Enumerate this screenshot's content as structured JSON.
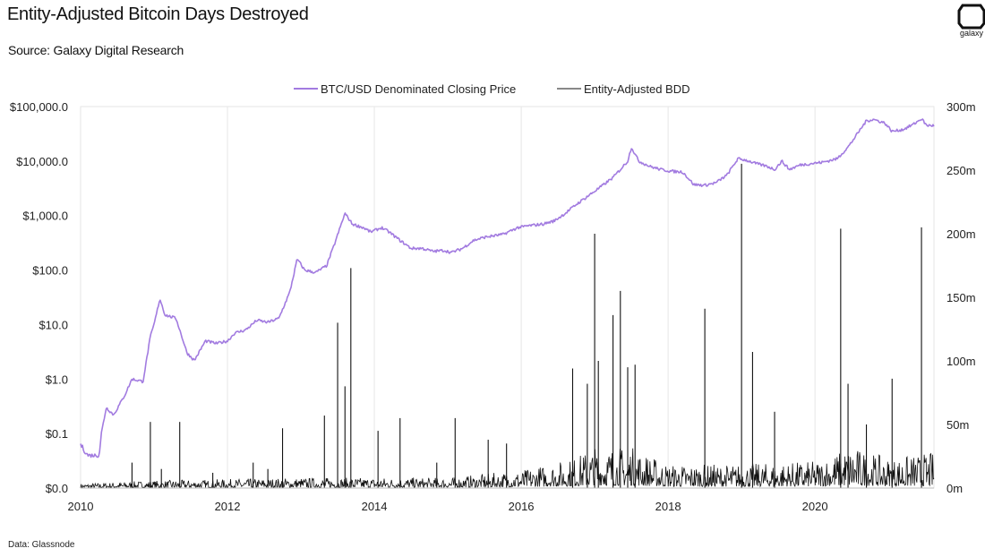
{
  "header": {
    "title": "Entity-Adjusted Bitcoin Days Destroyed",
    "subtitle": "Source: Galaxy Digital Research"
  },
  "logo": {
    "word": "galaxy"
  },
  "footer": {
    "note": "Data: Glassnode"
  },
  "colors": {
    "price": "#a27be0",
    "bdd": "#111111",
    "grid": "#e6e6e6"
  },
  "chart_data": {
    "type": "line",
    "x_range": [
      2010,
      2021.62
    ],
    "x_ticks": [
      2010,
      2012,
      2014,
      2016,
      2018,
      2020
    ],
    "x_tick_labels": [
      "2010",
      "2012",
      "2014",
      "2016",
      "2018",
      "2020"
    ],
    "left_axis": {
      "scale": "log-like",
      "ticks": [
        0,
        0.1,
        1,
        10,
        100,
        1000,
        10000,
        100000
      ],
      "tick_labels": [
        "$0.0",
        "$0.1",
        "$1.0",
        "$10.0",
        "$100.0",
        "$1,000.0",
        "$10,000.0",
        "$100,000.0"
      ]
    },
    "right_axis": {
      "scale": "linear",
      "range": [
        0,
        300000000
      ],
      "ticks": [
        0,
        50000000,
        100000000,
        150000000,
        200000000,
        250000000,
        300000000
      ],
      "tick_labels": [
        "0m",
        "50m",
        "100m",
        "150m",
        "200m",
        "250m",
        "300m"
      ]
    },
    "legend": {
      "placement": "top-center"
    },
    "series": [
      {
        "name": "BTC/USD Denominated Closing Price",
        "axis": "left",
        "points": [
          [
            2010.0,
            0.08
          ],
          [
            2010.1,
            0.06
          ],
          [
            2010.25,
            0.06
          ],
          [
            2010.35,
            0.3
          ],
          [
            2010.45,
            0.22
          ],
          [
            2010.6,
            0.5
          ],
          [
            2010.7,
            1.0
          ],
          [
            2010.85,
            0.9
          ],
          [
            2010.95,
            6
          ],
          [
            2011.0,
            10
          ],
          [
            2011.08,
            30
          ],
          [
            2011.15,
            15
          ],
          [
            2011.3,
            13
          ],
          [
            2011.45,
            3
          ],
          [
            2011.55,
            2.2
          ],
          [
            2011.7,
            5
          ],
          [
            2011.85,
            4.5
          ],
          [
            2012.0,
            5
          ],
          [
            2012.1,
            7
          ],
          [
            2012.25,
            8
          ],
          [
            2012.4,
            12
          ],
          [
            2012.55,
            11
          ],
          [
            2012.7,
            13
          ],
          [
            2012.85,
            40
          ],
          [
            2012.95,
            160
          ],
          [
            2013.05,
            100
          ],
          [
            2013.2,
            90
          ],
          [
            2013.35,
            120
          ],
          [
            2013.45,
            280
          ],
          [
            2013.6,
            1100
          ],
          [
            2013.7,
            700
          ],
          [
            2013.85,
            600
          ],
          [
            2013.95,
            500
          ],
          [
            2014.1,
            600
          ],
          [
            2014.2,
            500
          ],
          [
            2014.35,
            350
          ],
          [
            2014.5,
            250
          ],
          [
            2014.65,
            250
          ],
          [
            2014.8,
            220
          ],
          [
            2014.95,
            230
          ],
          [
            2015.05,
            210
          ],
          [
            2015.2,
            250
          ],
          [
            2015.35,
            350
          ],
          [
            2015.5,
            400
          ],
          [
            2015.6,
            420
          ],
          [
            2015.75,
            450
          ],
          [
            2015.95,
            600
          ],
          [
            2016.1,
            650
          ],
          [
            2016.3,
            700
          ],
          [
            2016.45,
            800
          ],
          [
            2016.6,
            1100
          ],
          [
            2016.75,
            1600
          ],
          [
            2016.95,
            2500
          ],
          [
            2017.1,
            3500
          ],
          [
            2017.25,
            5000
          ],
          [
            2017.35,
            7000
          ],
          [
            2017.45,
            10000
          ],
          [
            2017.5,
            18000
          ],
          [
            2017.6,
            10000
          ],
          [
            2017.75,
            8000
          ],
          [
            2017.9,
            7000
          ],
          [
            2018.05,
            6500
          ],
          [
            2018.2,
            6300
          ],
          [
            2018.35,
            3700
          ],
          [
            2018.5,
            3600
          ],
          [
            2018.65,
            4000
          ],
          [
            2018.8,
            5500
          ],
          [
            2018.95,
            11000
          ],
          [
            2019.05,
            10500
          ],
          [
            2019.2,
            9000
          ],
          [
            2019.35,
            8000
          ],
          [
            2019.45,
            7000
          ],
          [
            2019.55,
            10000
          ],
          [
            2019.65,
            7000
          ],
          [
            2019.8,
            8500
          ],
          [
            2019.95,
            9000
          ],
          [
            2020.1,
            9500
          ],
          [
            2020.3,
            11000
          ],
          [
            2020.45,
            18000
          ],
          [
            2020.55,
            28000
          ],
          [
            2020.7,
            55000
          ],
          [
            2020.8,
            58000
          ],
          [
            2020.95,
            50000
          ],
          [
            2021.05,
            35000
          ],
          [
            2021.2,
            38000
          ],
          [
            2021.35,
            48000
          ],
          [
            2021.45,
            60000
          ],
          [
            2021.52,
            45000
          ],
          [
            2021.62,
            45000
          ]
        ]
      },
      {
        "name": "Entity-Adjusted BDD",
        "axis": "right",
        "baseline_noise": [
          [
            2010.0,
            1500000
          ],
          [
            2011.0,
            2500000
          ],
          [
            2012.0,
            3000000
          ],
          [
            2013.0,
            3500000
          ],
          [
            2014.0,
            3500000
          ],
          [
            2015.0,
            3500000
          ],
          [
            2016.0,
            6000000
          ],
          [
            2016.7,
            10000000
          ],
          [
            2017.0,
            14000000
          ],
          [
            2017.5,
            14000000
          ],
          [
            2018.0,
            8000000
          ],
          [
            2019.0,
            8000000
          ],
          [
            2020.0,
            9000000
          ],
          [
            2020.5,
            14000000
          ],
          [
            2021.0,
            10000000
          ],
          [
            2021.62,
            12000000
          ]
        ],
        "spikes": [
          [
            2010.7,
            20000000
          ],
          [
            2010.95,
            52000000
          ],
          [
            2011.1,
            15000000
          ],
          [
            2011.35,
            52000000
          ],
          [
            2011.8,
            12000000
          ],
          [
            2012.35,
            20000000
          ],
          [
            2012.55,
            15000000
          ],
          [
            2012.75,
            47000000
          ],
          [
            2013.32,
            57000000
          ],
          [
            2013.5,
            130000000
          ],
          [
            2013.6,
            80000000
          ],
          [
            2013.68,
            173000000
          ],
          [
            2014.05,
            45000000
          ],
          [
            2014.35,
            55000000
          ],
          [
            2014.85,
            20000000
          ],
          [
            2015.1,
            55000000
          ],
          [
            2015.55,
            38000000
          ],
          [
            2015.8,
            35000000
          ],
          [
            2016.7,
            94000000
          ],
          [
            2016.9,
            82000000
          ],
          [
            2017.0,
            200000000
          ],
          [
            2017.05,
            100000000
          ],
          [
            2017.25,
            136000000
          ],
          [
            2017.35,
            155000000
          ],
          [
            2017.45,
            95000000
          ],
          [
            2017.55,
            97000000
          ],
          [
            2018.5,
            141000000
          ],
          [
            2019.0,
            255000000
          ],
          [
            2019.15,
            107000000
          ],
          [
            2019.45,
            60000000
          ],
          [
            2020.35,
            204000000
          ],
          [
            2020.45,
            82000000
          ],
          [
            2020.7,
            50000000
          ],
          [
            2021.05,
            86000000
          ],
          [
            2021.45,
            205000000
          ]
        ]
      }
    ]
  }
}
